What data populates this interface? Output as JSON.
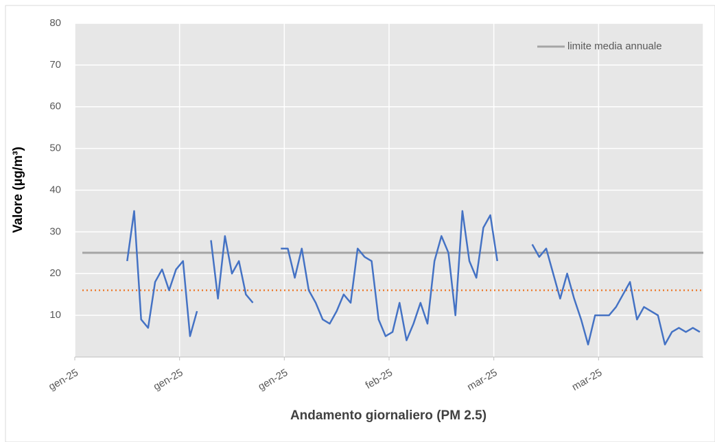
{
  "chart_data": {
    "type": "line",
    "x_label": "Andamento giornaliero (PM 2.5)",
    "y_label": "Valore (µg/m³)",
    "xlim": [
      0,
      90
    ],
    "xticks": [
      {
        "value": 0,
        "label": "gen-25"
      },
      {
        "value": 15,
        "label": "gen-25"
      },
      {
        "value": 30,
        "label": "gen-25"
      },
      {
        "value": 45,
        "label": "feb-25"
      },
      {
        "value": 60,
        "label": "mar-25"
      },
      {
        "value": 75,
        "label": "mar-25"
      }
    ],
    "ylim": [
      0,
      80
    ],
    "yticks": [
      10,
      20,
      30,
      40,
      50,
      60,
      70,
      80
    ],
    "grid": true,
    "legend": "top-right",
    "x": [
      7.5,
      8.5,
      9.5,
      10.5,
      11.5,
      12.5,
      13.5,
      14.5,
      15.5,
      16.5,
      17.5,
      18.5,
      19.5,
      20.5,
      21.5,
      22.5,
      23.5,
      24.5,
      25.5,
      26.5,
      27.5,
      28.5,
      29.5,
      30.5,
      31.5,
      32.5,
      33.5,
      34.5,
      35.5,
      36.5,
      37.5,
      38.5,
      39.5,
      40.5,
      41.5,
      42.5,
      43.5,
      44.5,
      45.5,
      46.5,
      47.5,
      48.5,
      49.5,
      50.5,
      51.5,
      52.5,
      53.5,
      54.5,
      55.5,
      56.5,
      57.5,
      58.5,
      59.5,
      60.5,
      61.5,
      62.5,
      63.5,
      64.5,
      65.5,
      66.5,
      67.5,
      68.5,
      69.5,
      70.5,
      71.5,
      72.5,
      73.5,
      74.5,
      75.5,
      76.5,
      77.5,
      78.5,
      79.5,
      80.5,
      81.5,
      82.5,
      83.5,
      84.5,
      85.5,
      86.5,
      87.5,
      88.5,
      89.5
    ],
    "series": [
      {
        "color": "#4472c4",
        "values": [
          23,
          35,
          9,
          7,
          18,
          21,
          16,
          21,
          23,
          5,
          11,
          null,
          28,
          14,
          29,
          20,
          23,
          15,
          13,
          null,
          null,
          null,
          26,
          26,
          19,
          26,
          16,
          13,
          9,
          8,
          11,
          15,
          13,
          26,
          24,
          23,
          9,
          5,
          6,
          13,
          4,
          8,
          13,
          8,
          23,
          29,
          25,
          10,
          35,
          23,
          19,
          31,
          34,
          23,
          null,
          null,
          null,
          null,
          27,
          24,
          26,
          20,
          14,
          20,
          14,
          9,
          3,
          10,
          10,
          10,
          12,
          15,
          18,
          9,
          12,
          11,
          10,
          3,
          6,
          7,
          6,
          7,
          6
        ]
      }
    ],
    "reference_lines": [
      {
        "name": "limite media annuale",
        "value": 25,
        "color": "#a5a5a5"
      },
      {
        "value": 16,
        "color": "#ed7d31",
        "dash": "dotted"
      }
    ]
  }
}
